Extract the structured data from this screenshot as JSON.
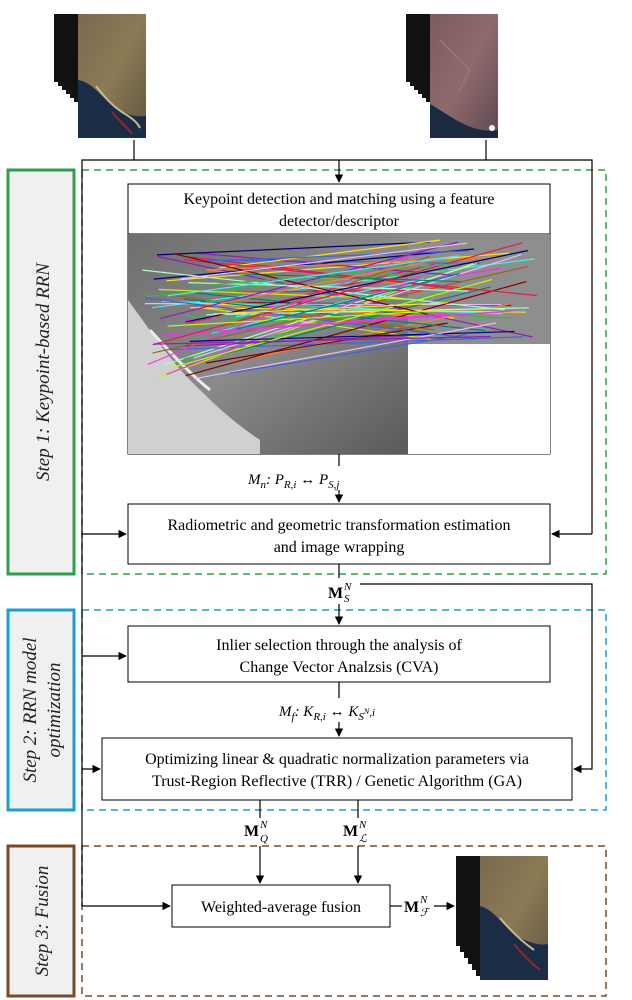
{
  "colors": {
    "step1": "#2e9e4f",
    "step2": "#1a9fd0",
    "step3": "#7a4a26",
    "step_fill": "#f0f0f0"
  },
  "steps": [
    {
      "label": "Step 1: Keypoint-based RRN"
    },
    {
      "label": "Step 2: RRN model",
      "label2": "optimization"
    },
    {
      "label": "Step 3: Fusion"
    }
  ],
  "boxes": {
    "keypoint": {
      "line1": "Keypoint detection and matching using a feature",
      "line2": "detector/descriptor"
    },
    "transform": {
      "line1": "Radiometric and geometric transformation estimation",
      "line2": "and image wrapping"
    },
    "inlier": {
      "line1": "Inlier selection  through the analysis of",
      "line2": "Change Vector Analzsis (CVA)"
    },
    "optimize": {
      "line1": "Optimizing linear & quadratic normalization parameters via",
      "line2": "Trust-Region Reflective (TRR) / Genetic Algorithm (GA)"
    },
    "fusion": {
      "line1": "Weighted-average fusion"
    }
  },
  "labels": {
    "mn": {
      "m": "M",
      "sub": "n",
      "rest": ": P",
      "pr": "R,i",
      "arrow": " ↔ P",
      "ps": "S,j"
    },
    "ms": {
      "m": "M",
      "sup": "N",
      "sub": "S"
    },
    "mf": {
      "m": "M",
      "sub": "f",
      "rest": ": K",
      "kr": "R,i",
      "arrow": " ↔ K",
      "ks": "S",
      "ksup": "N",
      "ksub2": ",i"
    },
    "mq": {
      "m": "M",
      "sup": "N",
      "sub": "Q"
    },
    "ml": {
      "m": "M",
      "sup": "N",
      "sub": "ℒ"
    },
    "mfused": {
      "m": "M",
      "sup": "N",
      "sub": "ℱ"
    }
  },
  "icons": [
    "reference-image-stack-icon",
    "subject-image-stack-icon",
    "keypoint-matching-image",
    "fused-image-stack-icon"
  ]
}
